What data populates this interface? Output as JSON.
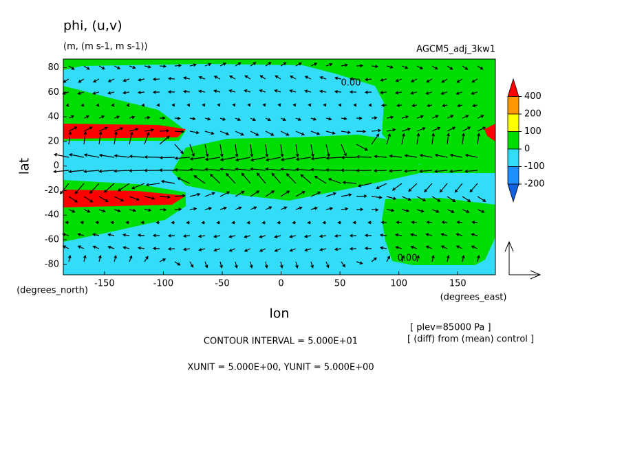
{
  "chart_data": {
    "type": "contour",
    "title": "phi, (u,v)",
    "subtitle": "(m, (m s-1, m s-1))",
    "run_label": "AGCM5_adj_3kw1",
    "x_label": "lon",
    "y_label": "lat",
    "x_units": "(degrees_east)",
    "y_units": "(degrees_north)",
    "xlim": [
      -185,
      182
    ],
    "ylim": [
      -88.5,
      87
    ],
    "xticks": [
      -150,
      -100,
      -50,
      0,
      50,
      100,
      150
    ],
    "yticks": [
      -80,
      -60,
      -40,
      -20,
      0,
      20,
      40,
      60,
      80
    ],
    "colorbar": {
      "levels": [
        400,
        200,
        100,
        0,
        -100,
        -200
      ],
      "colors": [
        "#ff0000",
        "#ff9900",
        "#ffff00",
        "#00dd00",
        "#33ddf8",
        "#1e90ff",
        "#1060e0"
      ]
    },
    "contour_labels": [
      "0.00",
      "0.00"
    ],
    "notes": [
      "CONTOUR INTERVAL = 5.000E+01",
      "XUNIT = 5.000E+00, YUNIT = 5.000E+00"
    ],
    "info": [
      "[ plev=85000 Pa ]",
      "[ (diff) from (mean) control ]"
    ]
  }
}
